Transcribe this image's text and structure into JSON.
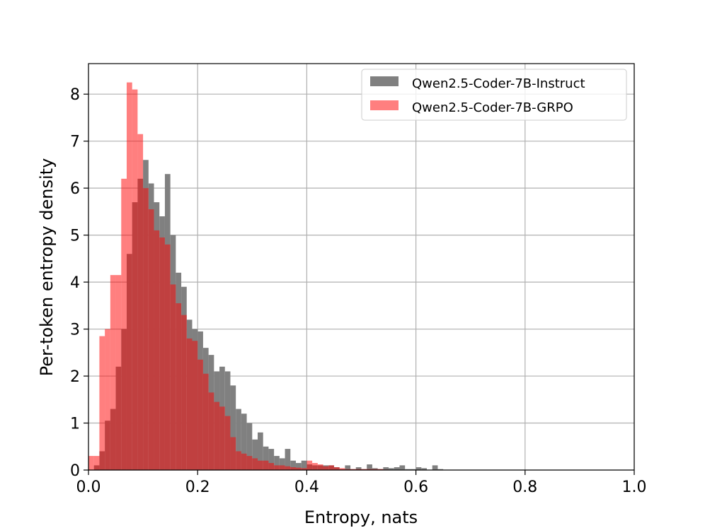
{
  "chart_data": {
    "type": "histogram",
    "title": "",
    "xlabel": "Entropy, nats",
    "ylabel": "Per-token entropy density",
    "xlim": [
      0.0,
      1.0
    ],
    "ylim": [
      0,
      8.65
    ],
    "xticks": [
      "0.0",
      "0.2",
      "0.4",
      "0.6",
      "0.8",
      "1.0"
    ],
    "yticks": [
      "0",
      "1",
      "2",
      "3",
      "4",
      "5",
      "6",
      "7",
      "8"
    ],
    "grid": true,
    "legend_position": "upper right",
    "bin_width": 0.01,
    "bin_start": 0.0,
    "series": [
      {
        "name": "Qwen2.5-Coder-7B-Instruct",
        "color": "#808080",
        "opacity": 1.0,
        "values": [
          0,
          0.1,
          0.4,
          1.05,
          1.3,
          2.2,
          3.0,
          4.6,
          5.7,
          6.2,
          6.6,
          6.1,
          5.7,
          5.4,
          6.3,
          5.0,
          4.2,
          3.9,
          3.2,
          3.0,
          2.95,
          2.6,
          2.45,
          2.1,
          2.2,
          2.1,
          1.8,
          1.3,
          1.2,
          1.0,
          0.65,
          0.8,
          0.5,
          0.45,
          0.3,
          0.25,
          0.45,
          0.2,
          0.15,
          0.2,
          0.12,
          0.1,
          0.1,
          0.1,
          0.1,
          0.06,
          0.02,
          0.1,
          0.02,
          0.06,
          0.02,
          0.12,
          0.04,
          0.02,
          0.06,
          0.04,
          0.06,
          0.1,
          0.02,
          0.02,
          0.06,
          0.04,
          0,
          0.1,
          0.02
        ]
      },
      {
        "name": "Qwen2.5-Coder-7B-GRPO",
        "color": "#ff0000",
        "opacity": 0.5,
        "values": [
          0.3,
          0.3,
          2.85,
          3.0,
          4.15,
          4.15,
          6.2,
          8.25,
          8.1,
          7.15,
          6.0,
          5.55,
          5.1,
          4.95,
          4.8,
          3.95,
          3.55,
          3.3,
          2.8,
          2.75,
          2.35,
          2.05,
          1.65,
          1.45,
          1.35,
          1.15,
          0.7,
          0.4,
          0.35,
          0.3,
          0.25,
          0.2,
          0.2,
          0.15,
          0.1,
          0.1,
          0.08,
          0.06,
          0.05,
          0.04,
          0.2,
          0.15,
          0.12,
          0.08,
          0.1,
          0.06,
          0.04,
          0.02,
          0.02,
          0.02,
          0.02,
          0.02,
          0.02,
          0.02,
          0.01
        ]
      }
    ]
  }
}
